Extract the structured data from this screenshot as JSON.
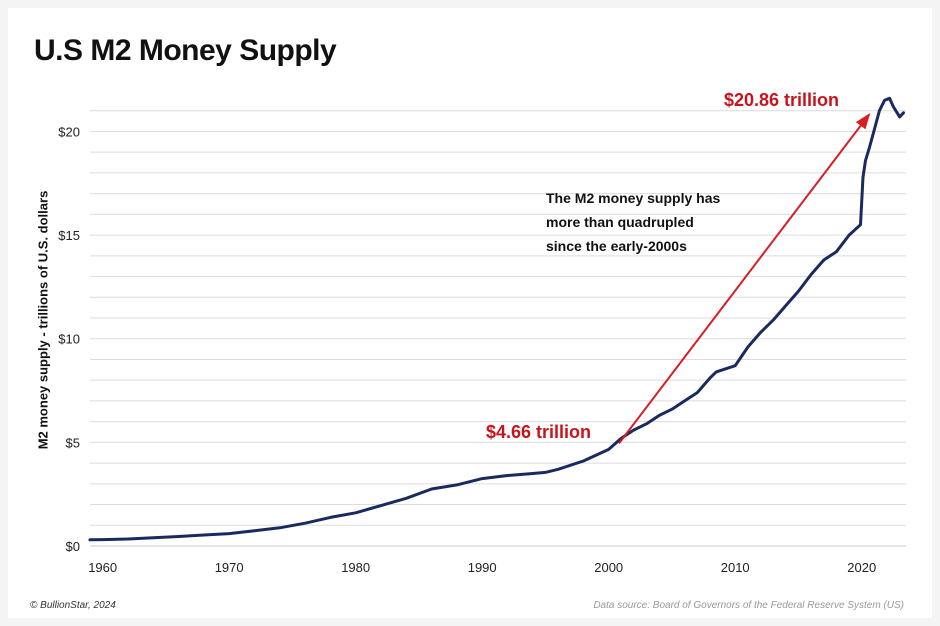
{
  "chart_data": {
    "type": "line",
    "title": "U.S M2 Money Supply",
    "ylabel": "M2 money supply - trillions of U.S. dollars",
    "xlabel": "",
    "xlim": [
      1959,
      2023.5
    ],
    "ylim": [
      0,
      22
    ],
    "x_ticks": [
      1960,
      1970,
      1980,
      1990,
      2000,
      2010,
      2020
    ],
    "y_ticks": [
      0,
      5,
      10,
      15,
      20
    ],
    "y_tick_labels": [
      "$0",
      "$5",
      "$10",
      "$15",
      "$20"
    ],
    "grid": "horizontal",
    "series": [
      {
        "color": "#1a2a5e",
        "x": [
          1959,
          1960,
          1962,
          1964,
          1966,
          1968,
          1970,
          1972,
          1974,
          1976,
          1978,
          1980,
          1982,
          1984,
          1986,
          1988,
          1990,
          1992,
          1994,
          1995,
          1996,
          1998,
          2000,
          2001,
          2002,
          2003,
          2004,
          2005,
          2006,
          2007,
          2008,
          2008.5,
          2009,
          2010,
          2011,
          2012,
          2013,
          2014,
          2015,
          2016,
          2017,
          2018,
          2019,
          2019.9,
          2020.1,
          2020.3,
          2020.6,
          2021,
          2021.4,
          2021.8,
          2022.2,
          2022.5,
          2022.8,
          2023,
          2023.3
        ],
        "values": [
          0.3,
          0.31,
          0.34,
          0.4,
          0.46,
          0.53,
          0.6,
          0.74,
          0.88,
          1.1,
          1.38,
          1.6,
          1.95,
          2.3,
          2.75,
          2.95,
          3.25,
          3.4,
          3.5,
          3.55,
          3.7,
          4.1,
          4.66,
          5.2,
          5.6,
          5.9,
          6.3,
          6.6,
          7.0,
          7.4,
          8.1,
          8.4,
          8.5,
          8.7,
          9.6,
          10.3,
          10.9,
          11.6,
          12.3,
          13.1,
          13.8,
          14.2,
          15.0,
          15.5,
          17.8,
          18.6,
          19.2,
          20.1,
          21.0,
          21.5,
          21.6,
          21.2,
          20.9,
          20.7,
          20.9
        ]
      }
    ],
    "annotations": [
      {
        "text": "$20.86 trillion",
        "color": "#c8141c"
      },
      {
        "text": "$4.66 trillion",
        "color": "#c8141c"
      },
      {
        "lines": [
          "The M2 money supply has",
          "more than quadrupled",
          "since the early-2000s"
        ]
      }
    ],
    "arrow": {
      "from": [
        2000.5,
        4.66
      ],
      "to": [
        2020.9,
        21.2
      ],
      "color": "#d81e24"
    }
  },
  "footer": {
    "credit": "© BullionStar, 2024",
    "source": "Data source: Board of Governors of the Federal Reserve System (US)"
  }
}
